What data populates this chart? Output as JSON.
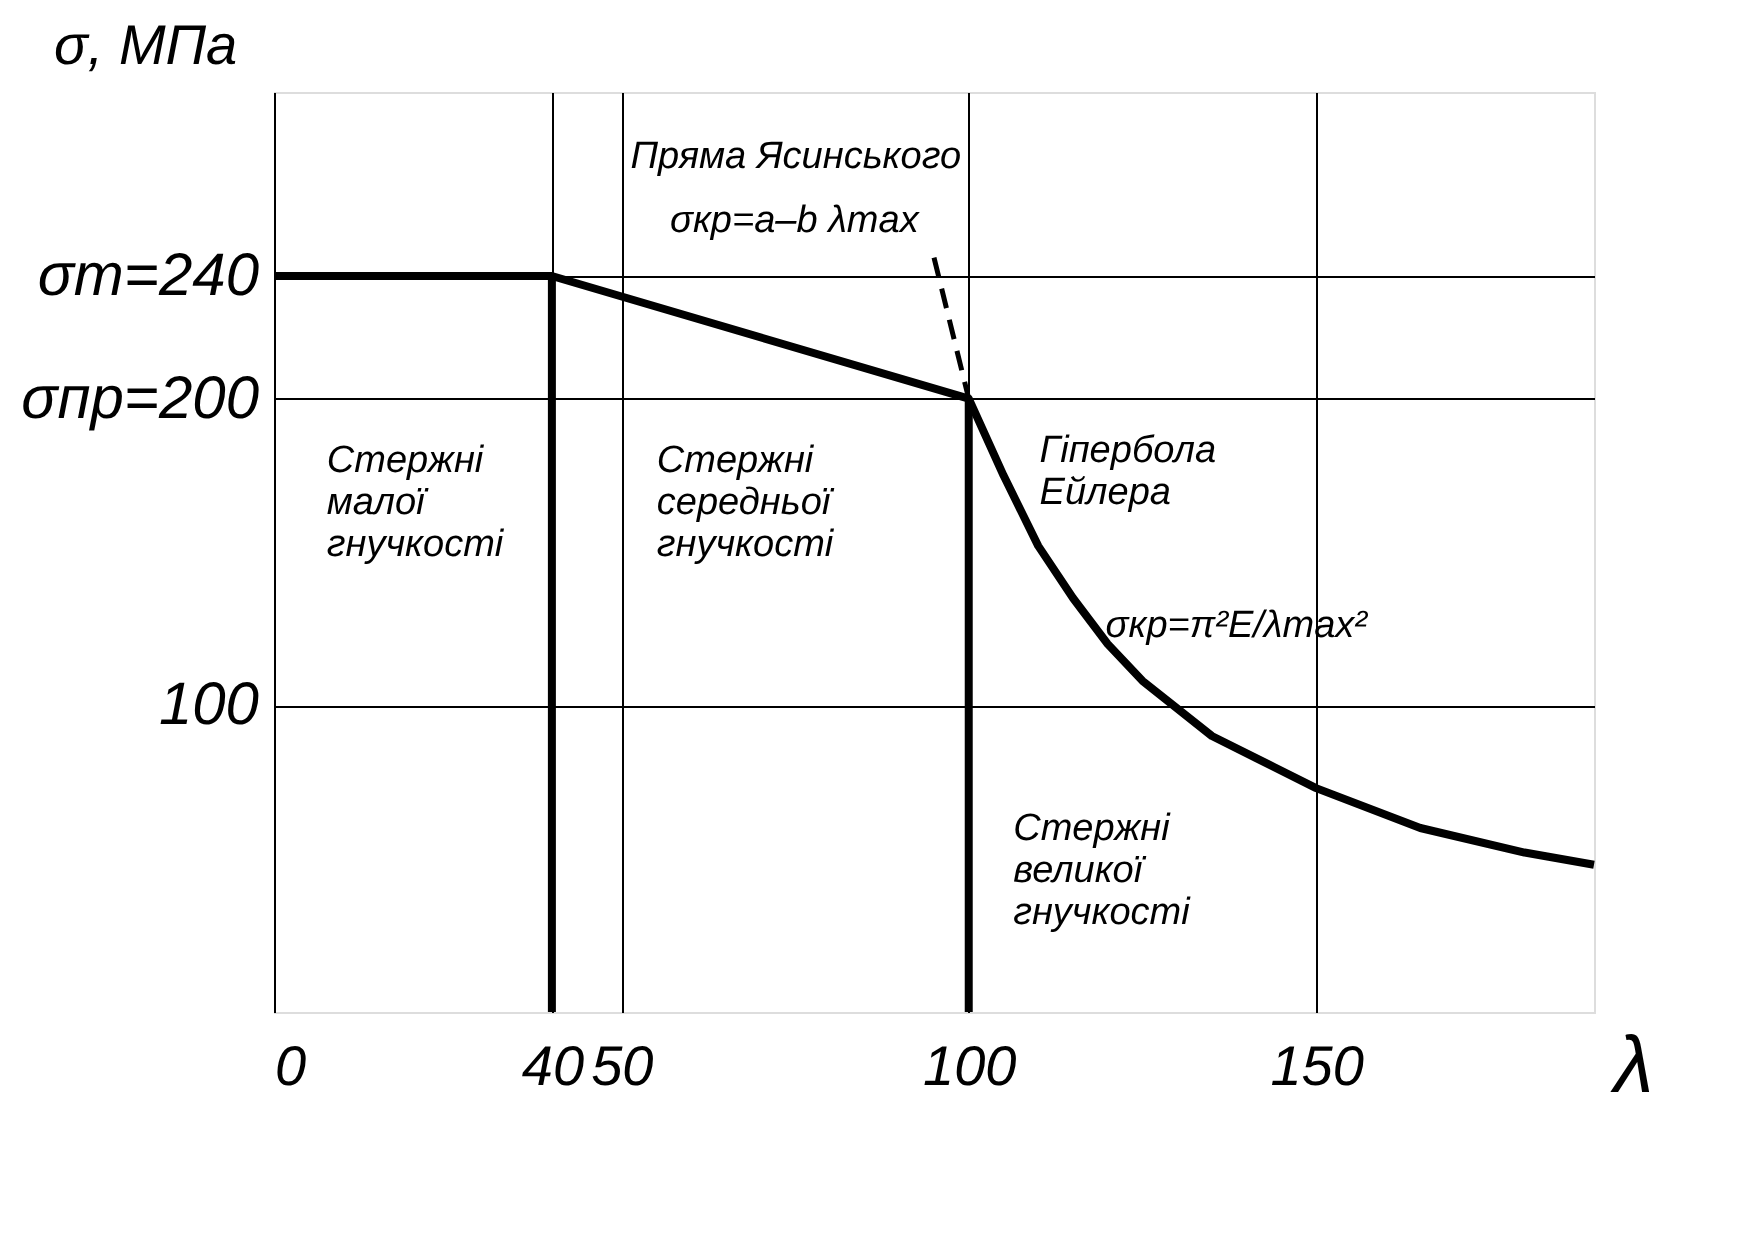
{
  "chart_data": {
    "type": "line",
    "xlabel": "λ",
    "ylabel": "σ, МПа",
    "xlim": [
      0,
      190
    ],
    "ylim": [
      0,
      300
    ],
    "xticks": [
      0,
      40,
      50,
      100,
      150
    ],
    "yticks": [
      100,
      {
        "value": 200,
        "label": "σпр=200"
      },
      {
        "value": 240,
        "label": "σт=240"
      }
    ],
    "grid": true,
    "marker": "none",
    "series": [
      {
        "color": "#000000",
        "x": [
          0,
          40,
          100,
          105,
          110,
          115,
          120,
          125,
          135,
          150,
          165,
          180,
          190
        ],
        "values": [
          240,
          240,
          200,
          175,
          152,
          135,
          120,
          108,
          90,
          73,
          60,
          52,
          48
        ]
      },
      {
        "color": "#000000",
        "x": [
          40,
          40
        ],
        "values": [
          0,
          240
        ]
      },
      {
        "color": "#000000",
        "x": [
          100,
          100
        ],
        "values": [
          0,
          200
        ]
      },
      {
        "color": "#000000",
        "x": [
          95,
          100
        ],
        "values": [
          246,
          200
        ],
        "line_style": "dashed"
      }
    ],
    "annotations": [
      "Пряма Ясинського",
      "σкр=a–b λmax",
      "Стержні\nмалої\nгнучкості",
      "Стержні\nсередньої\nгнучкості",
      "Гіпербола\nЕйлера",
      "σкр=π²E/λmax²",
      "Стержні\nвеликої\nгнучкості"
    ]
  }
}
